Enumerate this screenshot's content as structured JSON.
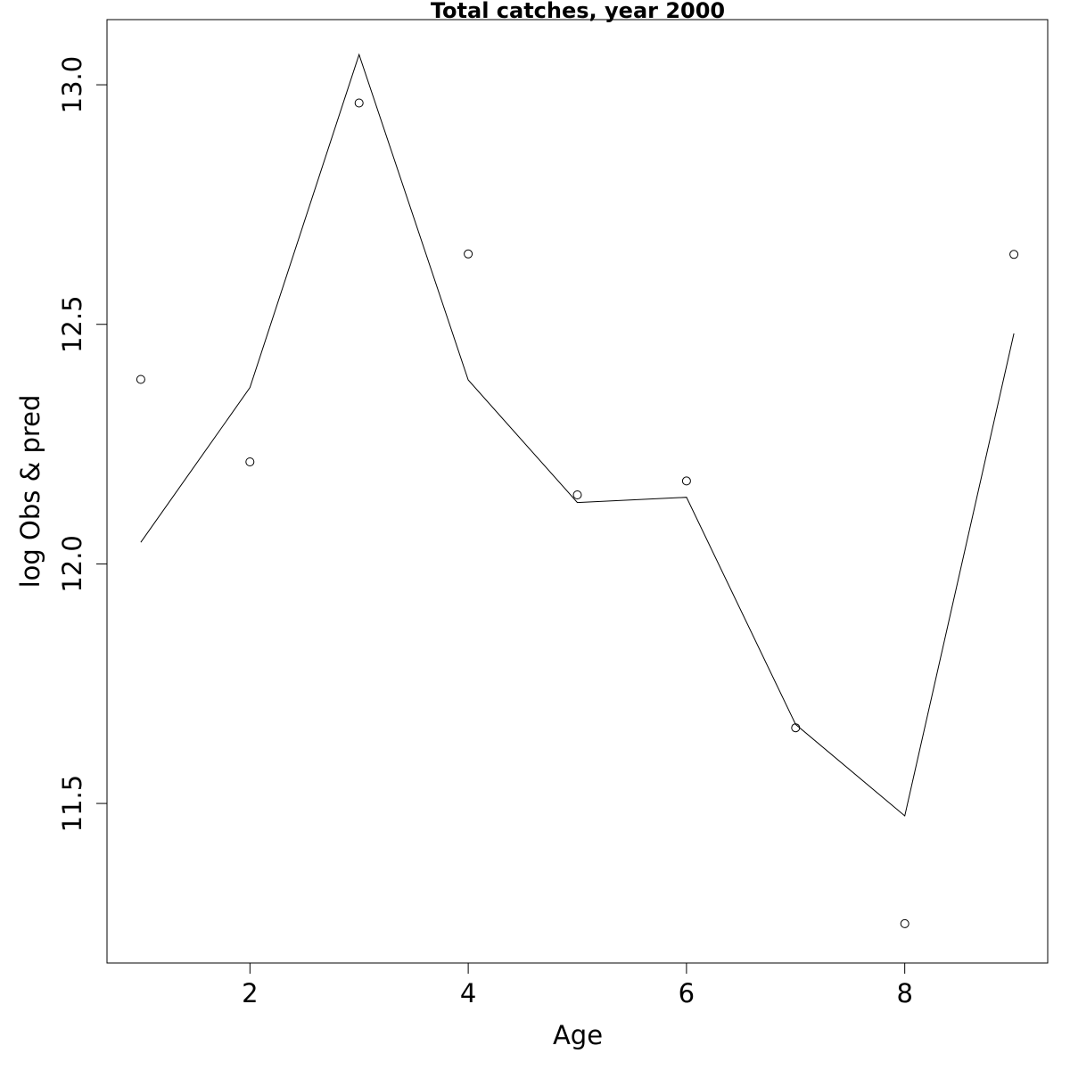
{
  "chart_data": {
    "type": "line",
    "title": "Total catches, year 2000",
    "xlabel": "Age",
    "ylabel": "log Obs & pred",
    "xlim": [
      0.69,
      9.31
    ],
    "ylim": [
      11.167,
      13.136
    ],
    "x_ticks": [
      2,
      4,
      6,
      8
    ],
    "x_tick_labels": [
      "2",
      "4",
      "6",
      "8"
    ],
    "y_ticks": [
      11.5,
      12.0,
      12.5,
      13.0
    ],
    "y_tick_labels": [
      "11.5",
      "12.0",
      "12.5",
      "13.0"
    ],
    "grid": false,
    "legend": "none",
    "series": [
      {
        "kind": "points",
        "marker": "open-circle",
        "x": [
          1,
          2,
          3,
          4,
          5,
          6,
          7,
          8,
          9
        ],
        "y": [
          12.385,
          12.213,
          12.962,
          12.647,
          12.144,
          12.173,
          11.658,
          11.249,
          12.646
        ]
      },
      {
        "kind": "line",
        "x": [
          1,
          2,
          3,
          4,
          5,
          6,
          7,
          8,
          9
        ],
        "y": [
          12.045,
          12.368,
          13.063,
          12.384,
          12.128,
          12.139,
          11.665,
          11.474,
          12.481
        ]
      }
    ],
    "colors": {
      "line": "#000000",
      "points": "#000000",
      "frame": "#000000",
      "background": "#ffffff"
    }
  }
}
